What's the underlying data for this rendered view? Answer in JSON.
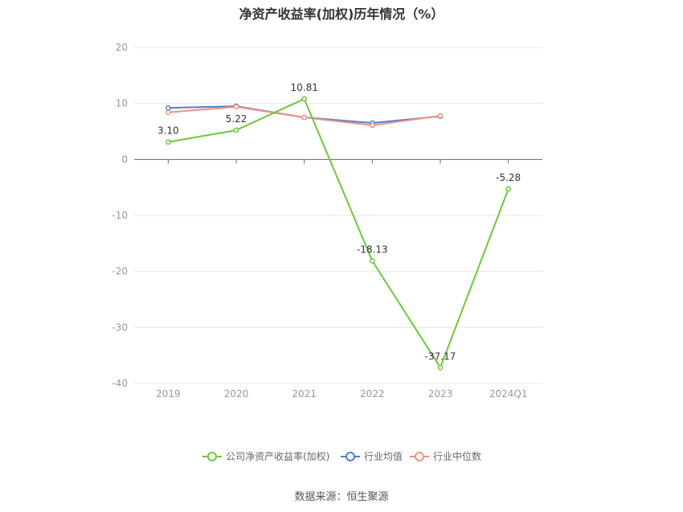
{
  "chart_data": {
    "type": "line",
    "title": "净资产收益率(加权)历年情况（%）",
    "categories": [
      "2019",
      "2020",
      "2021",
      "2022",
      "2023",
      "2024Q1"
    ],
    "ylim": [
      -40,
      20
    ],
    "yticks": [
      20,
      10,
      0,
      -10,
      -20,
      -30,
      -40
    ],
    "grid": true,
    "legend_position": "bottom",
    "series": [
      {
        "name": "公司净资产收益率(加权)",
        "color": "#6cc93a",
        "values": [
          3.1,
          5.22,
          10.81,
          -18.13,
          -37.17,
          -5.28
        ],
        "labels": [
          "3.10",
          "5.22",
          "10.81",
          "-18.13",
          "-37.17",
          "-5.28"
        ]
      },
      {
        "name": "行业均值",
        "color": "#4f7fdb",
        "values": [
          9.2,
          9.5,
          7.5,
          6.5,
          7.7,
          null
        ]
      },
      {
        "name": "行业中位数",
        "color": "#f0907a",
        "values": [
          8.4,
          9.4,
          7.5,
          6.1,
          7.8,
          null
        ]
      }
    ]
  },
  "source": "数据来源：恒生聚源"
}
